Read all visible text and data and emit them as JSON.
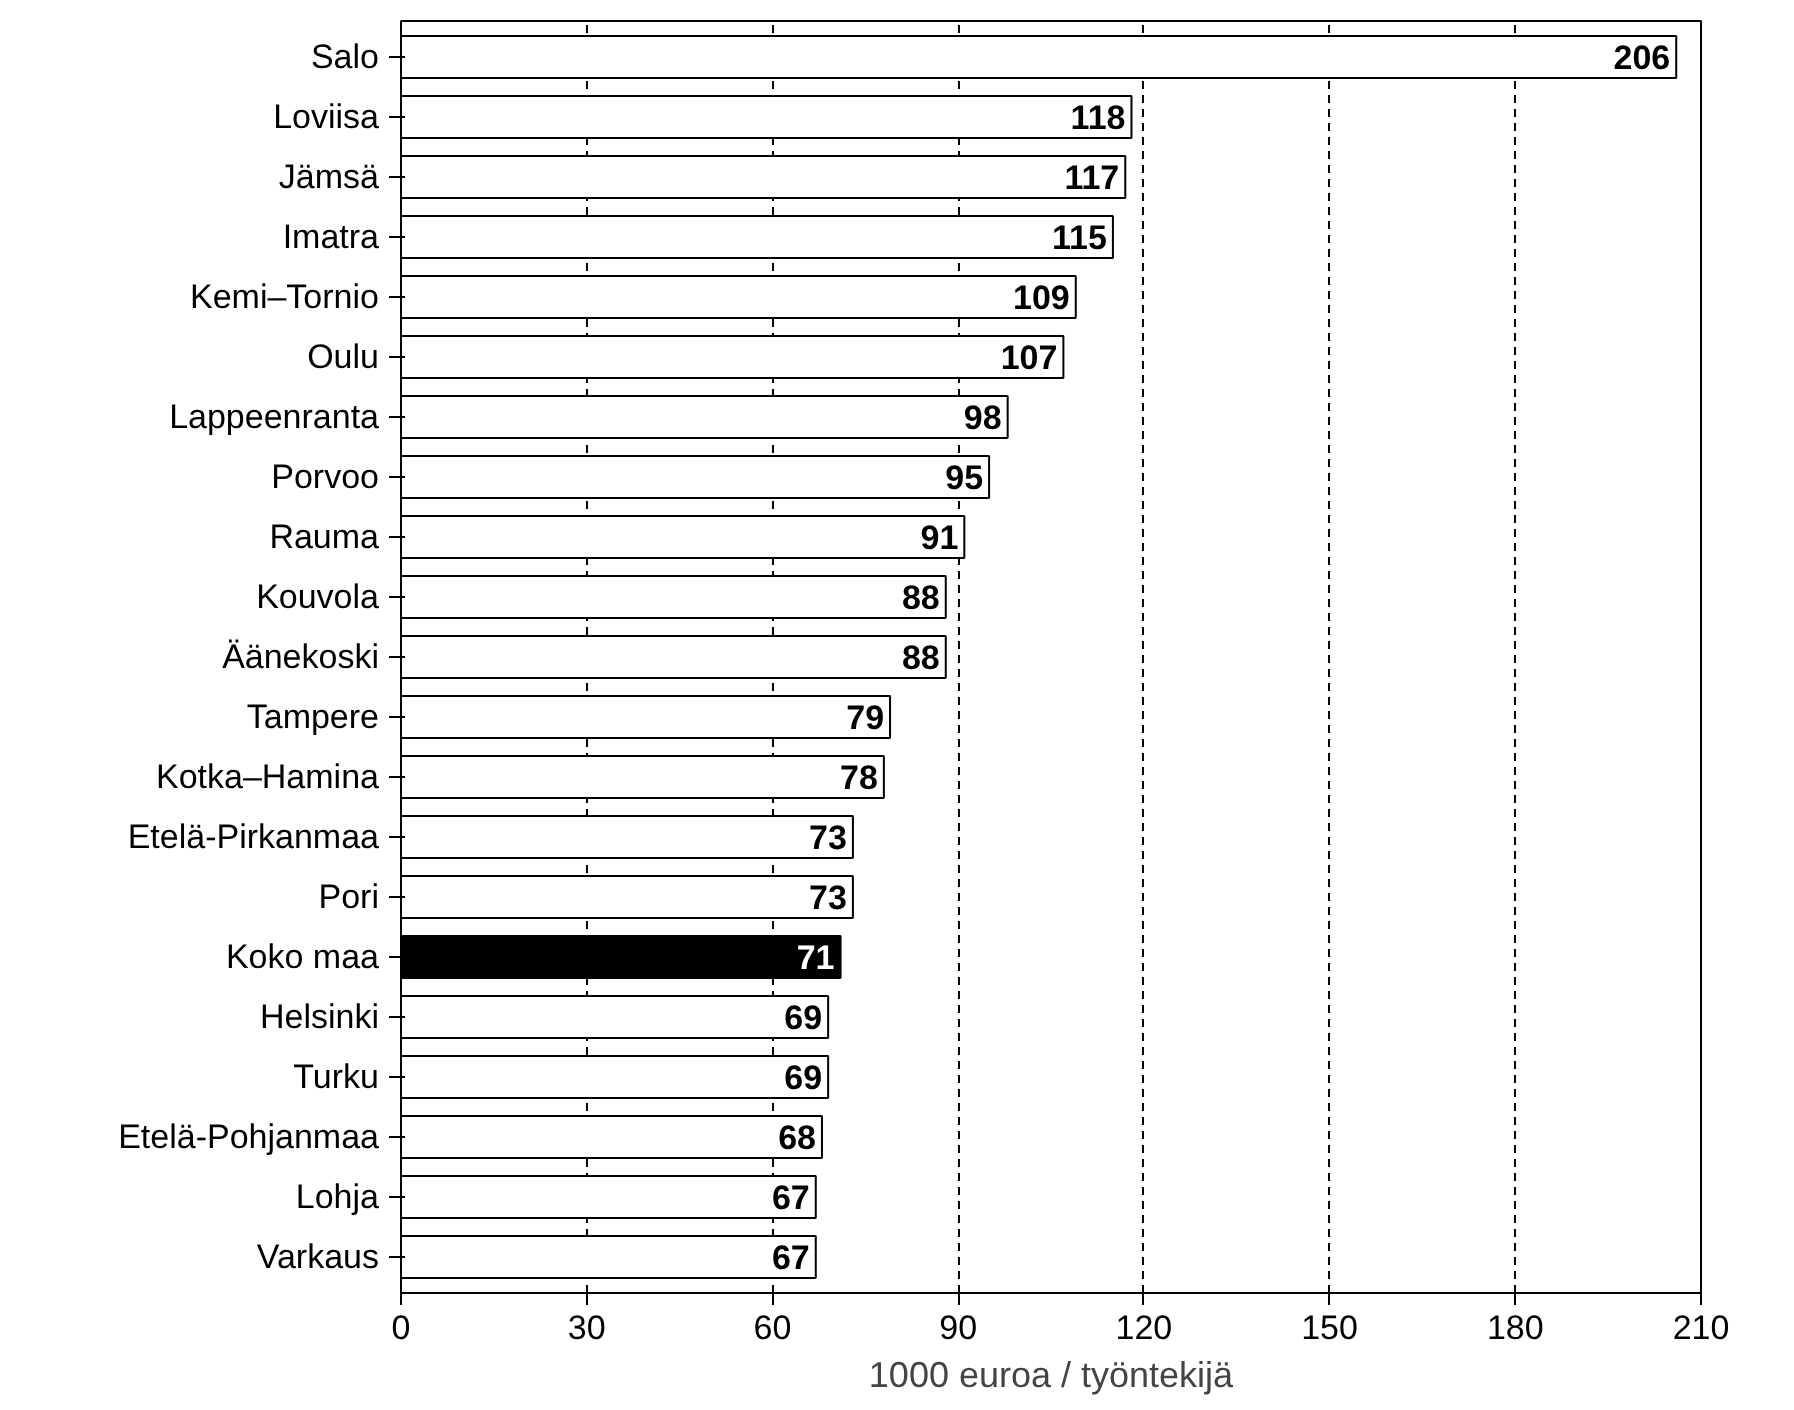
{
  "chart_data": {
    "type": "bar",
    "orientation": "horizontal",
    "xlabel": "1000 euroa / työntekijä",
    "categories": [
      "Salo",
      "Loviisa",
      "Jämsä",
      "Imatra",
      "Kemi–Tornio",
      "Oulu",
      "Lappeenranta",
      "Porvoo",
      "Rauma",
      "Kouvola",
      "Äänekoski",
      "Tampere",
      "Kotka–Hamina",
      "Etelä-Pirkanmaa",
      "Pori",
      "Koko maa",
      "Helsinki",
      "Turku",
      "Etelä-Pohjanmaa",
      "Lohja",
      "Varkaus"
    ],
    "values": [
      206,
      118,
      117,
      115,
      109,
      107,
      98,
      95,
      91,
      88,
      88,
      79,
      78,
      73,
      73,
      71,
      69,
      69,
      68,
      67,
      67
    ],
    "colors": [
      "#ffffff",
      "#ffffff",
      "#ffffff",
      "#ffffff",
      "#ffffff",
      "#ffffff",
      "#ffffff",
      "#ffffff",
      "#ffffff",
      "#ffffff",
      "#ffffff",
      "#ffffff",
      "#ffffff",
      "#ffffff",
      "#ffffff",
      "#000000",
      "#ffffff",
      "#ffffff",
      "#ffffff",
      "#ffffff",
      "#ffffff"
    ],
    "xlim": [
      0,
      210
    ],
    "xticks": [
      0,
      30,
      60,
      90,
      120,
      150,
      180,
      210
    ],
    "grid": "x",
    "data_labels": true
  }
}
